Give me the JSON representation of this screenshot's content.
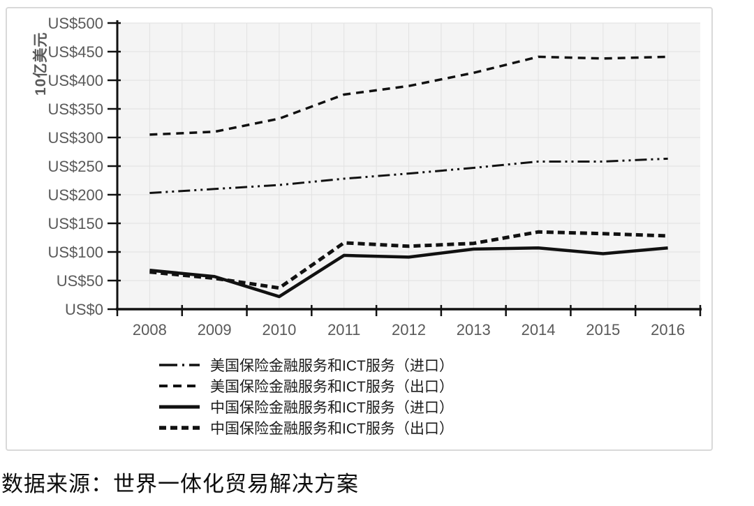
{
  "source_note": "数据来源：世界一体化贸易解决方案",
  "chart_data": {
    "type": "line",
    "title": "",
    "xlabel": "",
    "ylabel": "10亿美元",
    "ylim": [
      0,
      500
    ],
    "grid": true,
    "legend_position": "bottom-left",
    "line_color": "#111111",
    "categories": [
      "2008",
      "2009",
      "2010",
      "2011",
      "2012",
      "2013",
      "2014",
      "2015",
      "2016"
    ],
    "y_tick_labels": [
      "US$0",
      "US$50",
      "US$100",
      "US$150",
      "US$200",
      "US$250",
      "US$300",
      "US$350",
      "US$400",
      "US$450",
      "US$500"
    ],
    "y_tick_values": [
      0,
      50,
      100,
      150,
      200,
      250,
      300,
      350,
      400,
      450,
      500
    ],
    "series": [
      {
        "name": "美国保险金融服务和ICT服务（进口）",
        "line_style": "dash-dot-dot",
        "values": [
          203,
          210,
          217,
          228,
          237,
          247,
          258,
          258,
          263
        ]
      },
      {
        "name": "美国保险金融服务和ICT服务（出口）",
        "line_style": "dashed",
        "values": [
          305,
          310,
          333,
          375,
          390,
          413,
          441,
          438,
          441
        ]
      },
      {
        "name": "中国保险金融服务和ICT服务（进口）",
        "line_style": "solid",
        "values": [
          68,
          57,
          22,
          94,
          91,
          105,
          107,
          97,
          107
        ]
      },
      {
        "name": "中国保险金融服务和ICT服务（出口）",
        "line_style": "bold-dashed",
        "values": [
          65,
          54,
          37,
          116,
          110,
          115,
          135,
          132,
          128
        ]
      }
    ]
  }
}
